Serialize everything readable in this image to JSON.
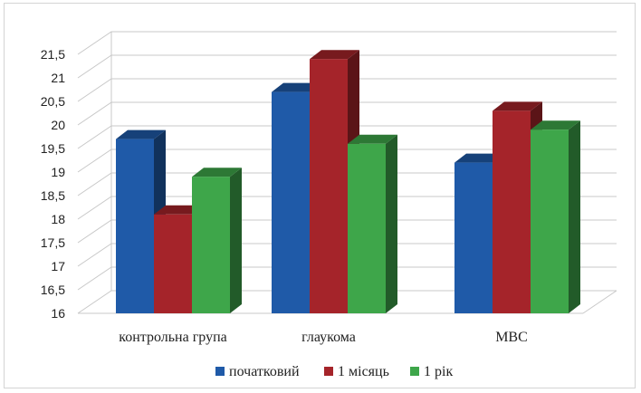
{
  "chart_data": {
    "type": "bar",
    "style": "3d-clustered-column",
    "categories": [
      "контрольна група",
      "глаукома",
      "МВС"
    ],
    "series": [
      {
        "name": "початковий",
        "color": "#1f5aa8",
        "values": [
          19.7,
          20.7,
          19.2
        ]
      },
      {
        "name": "1 місяць",
        "color": "#a5242a",
        "values": [
          18.1,
          21.4,
          20.3
        ]
      },
      {
        "name": "1 рік",
        "color": "#3ea64a",
        "values": [
          18.9,
          19.6,
          19.9
        ]
      }
    ],
    "ylim": [
      16,
      21.5
    ],
    "yticks": [
      "16",
      "16,5",
      "17",
      "17,5",
      "18",
      "18,5",
      "19",
      "19,5",
      "20",
      "20,5",
      "21",
      "21,5"
    ],
    "grid": true,
    "legend_position": "bottom",
    "title": "",
    "xlabel": "",
    "ylabel": ""
  }
}
